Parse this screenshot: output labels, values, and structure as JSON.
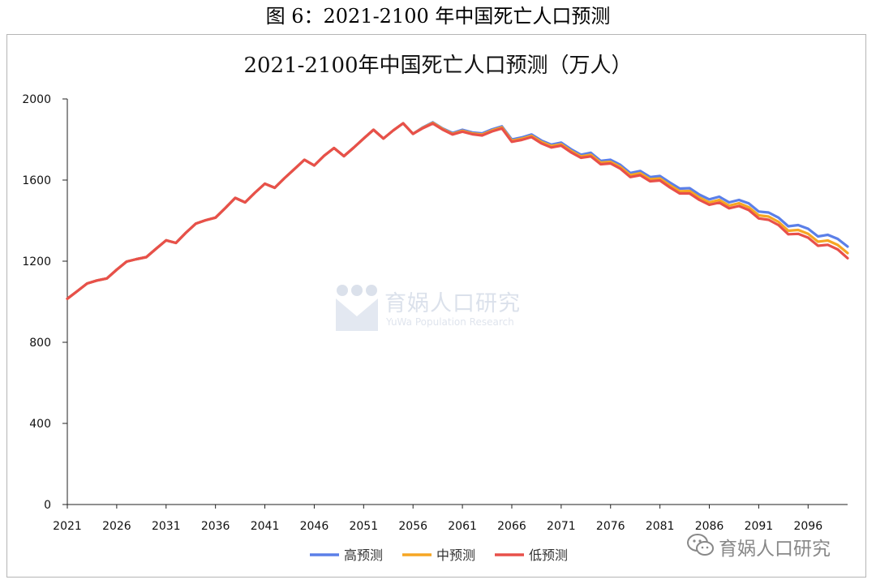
{
  "figure_caption": "图 6：2021-2100 年中国死亡人口预测",
  "watermark": {
    "name": "育娲人口研究",
    "subtitle": "YuWa Population Research"
  },
  "wechat_account": "育娲人口研究",
  "chart_data": {
    "type": "line",
    "title": "2021-2100年中国死亡人口预测（万人）",
    "xlabel": "",
    "ylabel": "",
    "xlim": [
      2021,
      2100
    ],
    "ylim": [
      0,
      2000
    ],
    "y_ticks": [
      0,
      400,
      800,
      1200,
      1600,
      2000
    ],
    "x_ticks": [
      2021,
      2026,
      2031,
      2036,
      2041,
      2046,
      2051,
      2056,
      2061,
      2066,
      2071,
      2076,
      2081,
      2086,
      2091,
      2096
    ],
    "grid": false,
    "legend_position": "bottom",
    "colors": {
      "high": "#5b7fe8",
      "mid": "#f6a623",
      "low": "#e8504a"
    },
    "x": [
      2021,
      2022,
      2023,
      2024,
      2025,
      2026,
      2027,
      2028,
      2029,
      2030,
      2031,
      2032,
      2033,
      2034,
      2035,
      2036,
      2037,
      2038,
      2039,
      2040,
      2041,
      2042,
      2043,
      2044,
      2045,
      2046,
      2047,
      2048,
      2049,
      2050,
      2051,
      2052,
      2053,
      2054,
      2055,
      2056,
      2057,
      2058,
      2059,
      2060,
      2061,
      2062,
      2063,
      2064,
      2065,
      2066,
      2067,
      2068,
      2069,
      2070,
      2071,
      2072,
      2073,
      2074,
      2075,
      2076,
      2077,
      2078,
      2079,
      2080,
      2081,
      2082,
      2083,
      2084,
      2085,
      2086,
      2087,
      2088,
      2089,
      2090,
      2091,
      2092,
      2093,
      2094,
      2095,
      2096,
      2097,
      2098,
      2099,
      2100
    ],
    "series": [
      {
        "name": "高预测",
        "key": "high",
        "values": [
          1015,
          1052,
          1090,
          1105,
          1115,
          1158,
          1198,
          1210,
          1220,
          1262,
          1303,
          1290,
          1340,
          1385,
          1402,
          1415,
          1462,
          1512,
          1490,
          1538,
          1582,
          1562,
          1610,
          1655,
          1700,
          1672,
          1720,
          1758,
          1718,
          1760,
          1805,
          1848,
          1805,
          1845,
          1880,
          1828,
          1860,
          1885,
          1855,
          1832,
          1848,
          1835,
          1830,
          1850,
          1865,
          1800,
          1810,
          1825,
          1795,
          1775,
          1785,
          1752,
          1725,
          1735,
          1695,
          1700,
          1675,
          1635,
          1645,
          1615,
          1620,
          1588,
          1558,
          1560,
          1528,
          1505,
          1518,
          1490,
          1502,
          1485,
          1445,
          1440,
          1415,
          1372,
          1378,
          1360,
          1322,
          1330,
          1310,
          1272
        ]
      },
      {
        "name": "中预测",
        "key": "mid",
        "values": [
          1015,
          1052,
          1090,
          1105,
          1115,
          1158,
          1198,
          1210,
          1220,
          1262,
          1303,
          1290,
          1340,
          1385,
          1402,
          1415,
          1462,
          1512,
          1490,
          1538,
          1582,
          1562,
          1610,
          1655,
          1700,
          1672,
          1720,
          1758,
          1718,
          1760,
          1805,
          1848,
          1805,
          1845,
          1880,
          1828,
          1858,
          1882,
          1852,
          1828,
          1843,
          1830,
          1825,
          1845,
          1860,
          1794,
          1804,
          1818,
          1788,
          1768,
          1777,
          1744,
          1717,
          1725,
          1686,
          1690,
          1665,
          1625,
          1634,
          1604,
          1608,
          1575,
          1545,
          1546,
          1514,
          1490,
          1502,
          1474,
          1486,
          1466,
          1426,
          1420,
          1394,
          1350,
          1354,
          1335,
          1296,
          1302,
          1280,
          1240
        ]
      },
      {
        "name": "低预测",
        "key": "low",
        "values": [
          1015,
          1052,
          1090,
          1105,
          1115,
          1158,
          1198,
          1210,
          1220,
          1262,
          1303,
          1290,
          1340,
          1385,
          1402,
          1415,
          1462,
          1512,
          1490,
          1538,
          1582,
          1562,
          1610,
          1655,
          1700,
          1672,
          1720,
          1758,
          1718,
          1760,
          1805,
          1848,
          1805,
          1845,
          1880,
          1828,
          1856,
          1879,
          1849,
          1825,
          1839,
          1826,
          1820,
          1840,
          1855,
          1789,
          1798,
          1812,
          1781,
          1761,
          1770,
          1737,
          1710,
          1717,
          1678,
          1682,
          1656,
          1615,
          1624,
          1594,
          1598,
          1564,
          1534,
          1534,
          1502,
          1478,
          1489,
          1461,
          1472,
          1452,
          1411,
          1404,
          1378,
          1333,
          1335,
          1316,
          1276,
          1281,
          1258,
          1215
        ]
      }
    ]
  }
}
